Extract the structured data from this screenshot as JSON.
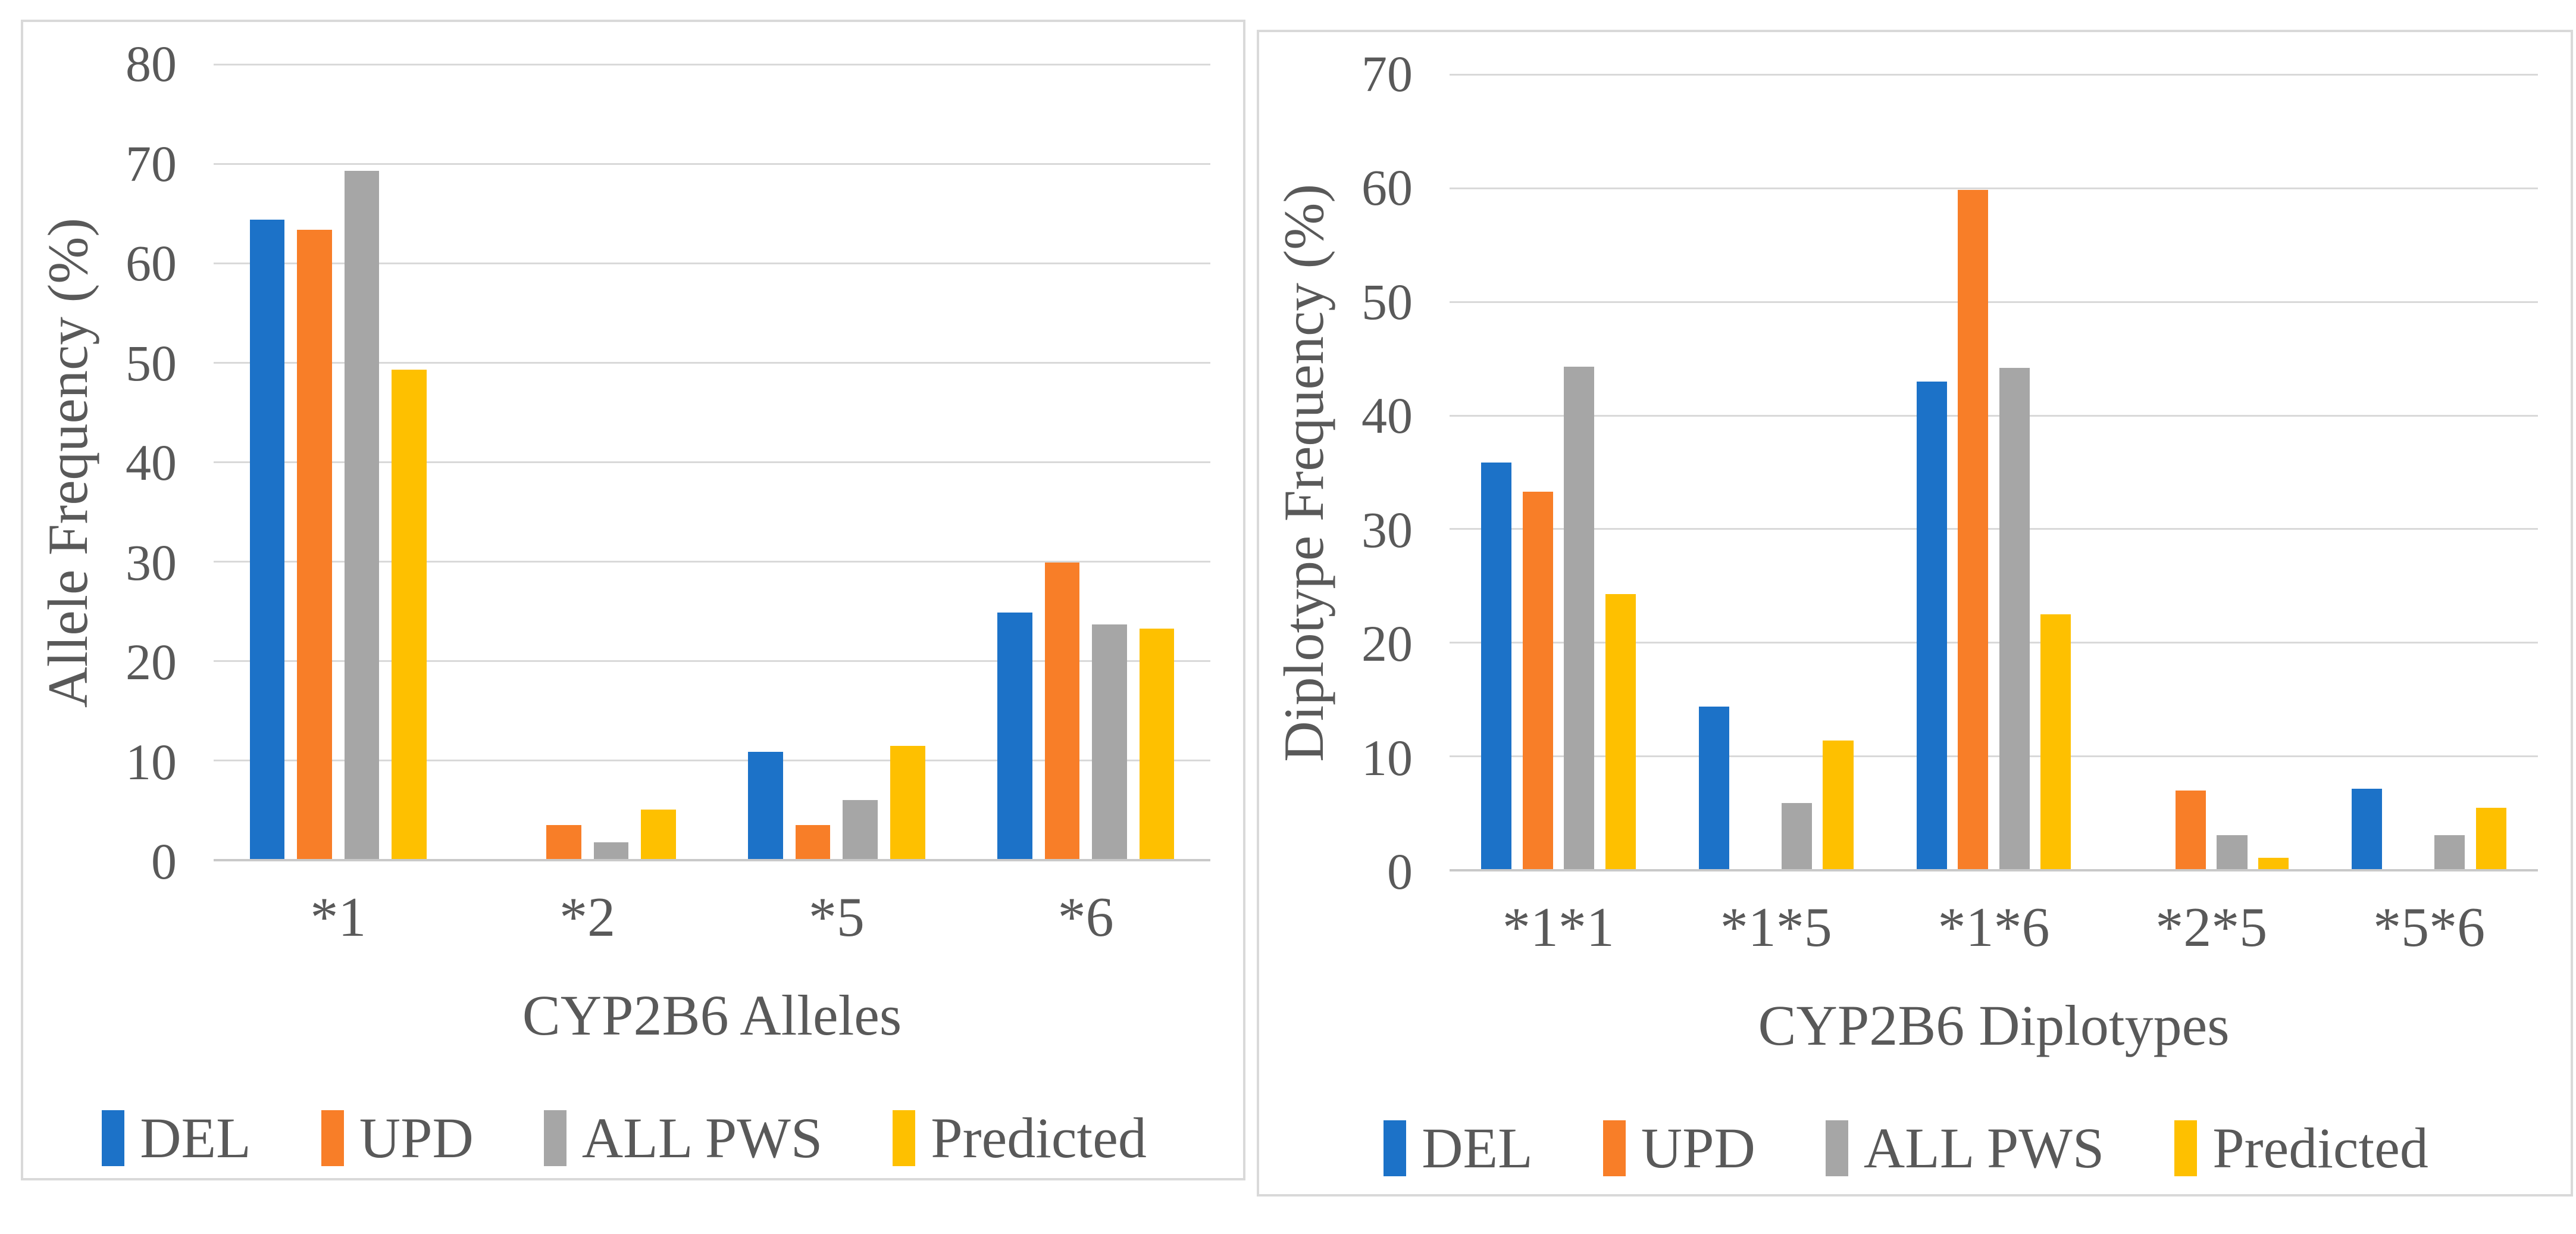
{
  "figure": {
    "series_names": [
      "DEL",
      "UPD",
      "ALL PWS",
      "Predicted"
    ],
    "series_colors": [
      "#1c72c8",
      "#f87e28",
      "#a6a6a6",
      "#fec000"
    ],
    "grid_color": "#d9d9d9",
    "baseline_color": "#c9c9c9",
    "text_color": "#595959",
    "panel_border_color": "#d9d9d9",
    "background": "#ffffff"
  },
  "chart_data": [
    {
      "type": "bar",
      "title": "",
      "xlabel": "CYP2B6 Alleles",
      "ylabel": "Allele Frequency (%)",
      "ylim": [
        0,
        80
      ],
      "ytick_step": 10,
      "grid": true,
      "legend_position": "bottom",
      "categories": [
        "*1",
        "*2",
        "*5",
        "*6"
      ],
      "series": [
        {
          "name": "DEL",
          "values": [
            64.3,
            0,
            10.8,
            24.8
          ]
        },
        {
          "name": "UPD",
          "values": [
            63.3,
            3.4,
            3.4,
            29.8
          ]
        },
        {
          "name": "ALL PWS",
          "values": [
            69.2,
            1.7,
            5.9,
            23.6
          ]
        },
        {
          "name": "Predicted",
          "values": [
            49.2,
            5.0,
            11.4,
            23.2
          ]
        }
      ]
    },
    {
      "type": "bar",
      "title": "",
      "xlabel": "CYP2B6 Diplotypes",
      "ylabel": "Diplotype Frequency (%)",
      "ylim": [
        0,
        70
      ],
      "ytick_step": 10,
      "grid": true,
      "legend_position": "bottom",
      "categories": [
        "*1*1",
        "*1*5",
        "*1*6",
        "*2*5",
        "*5*6"
      ],
      "series": [
        {
          "name": "DEL",
          "values": [
            35.8,
            14.3,
            42.9,
            0,
            7.1
          ]
        },
        {
          "name": "UPD",
          "values": [
            33.2,
            0,
            59.8,
            6.9,
            0
          ]
        },
        {
          "name": "ALL PWS",
          "values": [
            44.2,
            5.8,
            44.1,
            3.0,
            3.0
          ]
        },
        {
          "name": "Predicted",
          "values": [
            24.2,
            11.3,
            22.4,
            1.0,
            5.4
          ]
        }
      ]
    }
  ]
}
